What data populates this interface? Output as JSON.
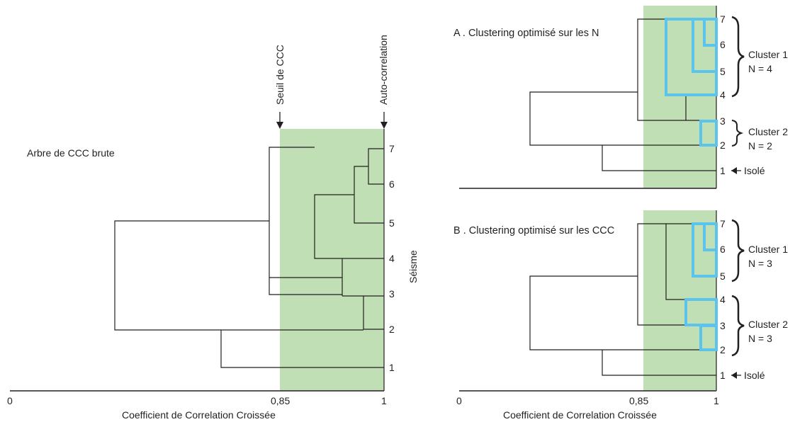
{
  "left_panel": {
    "title": "Arbre de CCC brute",
    "leaf_labels": [
      "1",
      "2",
      "3",
      "4",
      "5",
      "6",
      "7"
    ],
    "seuil_label": "Seuil de CCC",
    "autocorr_label": "Auto-correlation",
    "y_axis_label": "Séisme",
    "x_ticks": [
      "0",
      "0,85",
      "1"
    ],
    "x_axis_label": "Coefficient de Correlation Croissée"
  },
  "panel_a": {
    "title": "A . Clustering optimisé sur les N",
    "leaf_labels": [
      "1",
      "2",
      "3",
      "4",
      "5",
      "6",
      "7"
    ],
    "clusters": [
      {
        "name": "Cluster 1",
        "n_label": "N = 4"
      },
      {
        "name": "Cluster 2",
        "n_label": "N = 2"
      }
    ],
    "isole_label": "Isolé"
  },
  "panel_b": {
    "title": "B . Clustering optimisé sur les CCC",
    "leaf_labels": [
      "1",
      "2",
      "3",
      "4",
      "5",
      "6",
      "7"
    ],
    "clusters": [
      {
        "name": "Cluster 1",
        "n_label": "N = 3"
      },
      {
        "name": "Cluster 2",
        "n_label": "N = 3"
      }
    ],
    "isole_label": "Isolé",
    "x_ticks": [
      "0",
      "0,85",
      "1"
    ],
    "x_axis_label": "Coefficient de Correlation Croissée"
  },
  "colors": {
    "threshold_zone": "#c1dfb4",
    "cluster_highlight": "#5cc4ec",
    "line": "#231f20"
  }
}
